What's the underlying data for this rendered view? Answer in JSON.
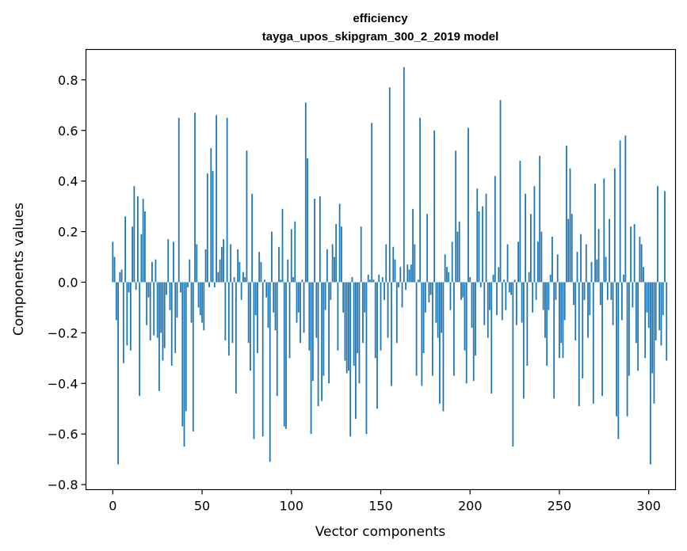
{
  "chart_data": {
    "type": "bar",
    "title": "efficiency",
    "subtitle": "tayga_upos_skipgram_300_2_2019 model",
    "xlabel": "Vector components",
    "ylabel": "Components values",
    "xlim": [
      -15,
      315
    ],
    "ylim": [
      -0.82,
      0.92
    ],
    "xticks": [
      0,
      50,
      100,
      150,
      200,
      250,
      300
    ],
    "yticks": [
      -0.8,
      -0.6,
      -0.4,
      -0.2,
      0.0,
      0.2,
      0.4,
      0.6,
      0.8
    ],
    "x_tick_labels": [
      "0",
      "50",
      "100",
      "150",
      "200",
      "250",
      "300"
    ],
    "y_tick_labels": [
      "−0.8",
      "−0.6",
      "−0.4",
      "−0.2",
      "0.0",
      "0.2",
      "0.4",
      "0.6",
      "0.8"
    ],
    "bar_color": "#1f77b4",
    "values": [
      0.16,
      0.1,
      -0.15,
      -0.72,
      0.04,
      0.05,
      -0.32,
      0.26,
      -0.25,
      -0.04,
      -0.27,
      0.22,
      0.38,
      -0.03,
      0.34,
      -0.45,
      0.19,
      0.33,
      0.28,
      -0.17,
      -0.06,
      -0.23,
      0.08,
      -0.21,
      0.09,
      -0.22,
      -0.43,
      -0.2,
      -0.31,
      -0.26,
      -0.05,
      0.17,
      -0.11,
      -0.33,
      0.16,
      -0.28,
      -0.14,
      0.65,
      -0.04,
      -0.57,
      -0.65,
      -0.51,
      -0.02,
      0.09,
      -0.16,
      -0.59,
      0.67,
      0.15,
      -0.1,
      -0.13,
      -0.16,
      -0.19,
      0.13,
      0.43,
      -0.02,
      0.53,
      0.44,
      -0.02,
      0.66,
      0.04,
      0.09,
      0.14,
      0.17,
      -0.23,
      0.65,
      -0.29,
      0.15,
      -0.24,
      0.02,
      -0.44,
      0.13,
      0.08,
      -0.07,
      0.04,
      0.02,
      0.52,
      -0.24,
      -0.35,
      0.35,
      -0.62,
      -0.13,
      -0.28,
      0.12,
      0.08,
      -0.61,
      0.01,
      -0.06,
      -0.18,
      -0.71,
      0.2,
      -0.12,
      -0.19,
      -0.45,
      0.14,
      0.01,
      0.29,
      -0.57,
      -0.58,
      0.09,
      -0.3,
      0.21,
      0.02,
      0.24,
      -0.16,
      -0.12,
      -0.24,
      0.01,
      -0.2,
      0.71,
      0.49,
      -0.27,
      -0.6,
      -0.39,
      0.33,
      -0.22,
      -0.49,
      0.34,
      -0.47,
      -0.37,
      -0.11,
      0.13,
      -0.4,
      -0.07,
      0.15,
      0.1,
      0.23,
      -0.27,
      0.31,
      0.22,
      -0.12,
      -0.31,
      -0.36,
      -0.35,
      -0.61,
      0.02,
      -0.33,
      -0.54,
      -0.28,
      -0.4,
      0.22,
      -0.24,
      -0.12,
      -0.6,
      0.03,
      0.01,
      0.63,
      0.01,
      -0.3,
      -0.5,
      0.03,
      -0.27,
      0.02,
      -0.07,
      0.15,
      -0.22,
      0.77,
      -0.41,
      0.14,
      0.09,
      -0.24,
      -0.02,
      0.06,
      -0.1,
      0.85,
      -0.03,
      0.07,
      0.05,
      0.07,
      0.29,
      0.15,
      -0.37,
      0.01,
      0.65,
      -0.41,
      -0.28,
      -0.12,
      0.27,
      -0.08,
      -0.05,
      -0.37,
      0.6,
      -0.16,
      -0.22,
      -0.48,
      -0.2,
      -0.51,
      0.11,
      0.06,
      0.04,
      -0.11,
      0.16,
      -0.37,
      0.52,
      0.2,
      0.24,
      -0.07,
      -0.06,
      -0.27,
      -0.4,
      0.61,
      0.02,
      -0.18,
      -0.39,
      -0.29,
      0.37,
      0.28,
      -0.02,
      0.3,
      -0.17,
      0.35,
      -0.22,
      -0.11,
      -0.44,
      0.03,
      0.42,
      -0.13,
      0.06,
      0.72,
      -0.15,
      0.01,
      -0.11,
      0.15,
      -0.04,
      -0.05,
      -0.65,
      0.01,
      -0.17,
      0.16,
      0.48,
      -0.16,
      -0.46,
      0.35,
      -0.33,
      0.04,
      0.27,
      -0.12,
      0.38,
      -0.07,
      0.16,
      0.5,
      0.2,
      -0.11,
      -0.22,
      -0.33,
      -0.11,
      0.03,
      0.18,
      -0.46,
      -0.07,
      0.11,
      -0.3,
      -0.24,
      -0.3,
      -0.15,
      0.54,
      0.25,
      0.45,
      0.27,
      -0.09,
      -0.23,
      0.12,
      -0.49,
      0.19,
      -0.38,
      -0.07,
      0.15,
      -0.22,
      -0.13,
      0.08,
      -0.48,
      0.39,
      0.09,
      0.21,
      -0.09,
      -0.45,
      0.41,
      0.1,
      -0.07,
      0.25,
      -0.07,
      -0.17,
      0.45,
      -0.53,
      -0.62,
      0.56,
      -0.15,
      0.03,
      0.58,
      -0.53,
      -0.37,
      0.22,
      -0.1,
      0.23,
      -0.24,
      -0.35,
      0.18,
      0.15,
      0.06,
      -0.3,
      -0.12,
      -0.18,
      -0.72,
      -0.36,
      -0.48,
      -0.23,
      0.38,
      -0.19,
      -0.25,
      -0.13,
      0.36,
      -0.31
    ]
  }
}
